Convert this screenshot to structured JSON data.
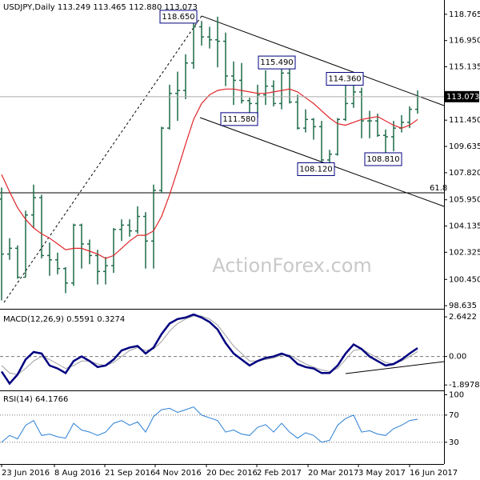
{
  "chart_data": [
    {
      "type": "ohlc",
      "title": "USDJPY,Daily 113.249 113.465 112.880 113.073",
      "watermark": "ActionForex.com",
      "color": "#1f6b4a",
      "x": [
        0,
        1,
        2,
        3,
        4,
        5,
        6,
        7,
        8,
        9,
        10,
        11,
        12,
        13,
        14,
        15,
        16,
        17,
        18,
        19,
        20,
        21,
        22,
        23,
        24,
        25,
        26,
        27,
        28,
        29,
        30,
        31,
        32,
        33,
        34,
        35,
        36,
        37,
        38,
        39,
        40,
        41,
        42,
        43,
        44,
        45,
        46,
        47,
        48,
        49,
        50,
        51,
        52
      ],
      "open": [
        106.0,
        102.2,
        102.6,
        100.6,
        104.9,
        106.1,
        102.1,
        101.8,
        101.2,
        100.2,
        104.2,
        102.9,
        102.1,
        101.0,
        101.4,
        103.9,
        104.2,
        103.8,
        104.8,
        103.1,
        106.6,
        110.9,
        113.3,
        113.5,
        115.4,
        117.9,
        117.2,
        117.0,
        116.9,
        114.5,
        114.2,
        112.8,
        112.6,
        113.2,
        113.8,
        112.6,
        114.7,
        112.7,
        110.9,
        111.5,
        111.0,
        108.7,
        109.1,
        111.5,
        112.6,
        113.4,
        111.4,
        111.4,
        110.4,
        110.3,
        110.9,
        111.3,
        112.2
      ],
      "high": [
        106.8,
        103.3,
        102.8,
        105.2,
        107.0,
        106.3,
        103.0,
        102.3,
        101.3,
        104.3,
        104.3,
        103.2,
        102.5,
        102.0,
        104.0,
        104.6,
        104.6,
        105.5,
        105.1,
        107.0,
        111.0,
        113.9,
        114.8,
        116.0,
        118.65,
        118.3,
        117.9,
        118.6,
        117.5,
        115.5,
        115.4,
        113.0,
        113.9,
        114.9,
        114.2,
        115.5,
        115.1,
        113.2,
        112.2,
        111.6,
        111.4,
        109.4,
        111.6,
        114.0,
        114.36,
        113.7,
        112.1,
        111.9,
        110.8,
        111.4,
        111.8,
        112.4,
        113.5
      ],
      "low": [
        99.0,
        101.8,
        100.5,
        100.6,
        104.0,
        101.9,
        100.7,
        100.8,
        99.5,
        100.0,
        101.2,
        101.5,
        100.1,
        100.1,
        100.9,
        103.1,
        103.4,
        103.6,
        101.2,
        101.2,
        106.4,
        110.8,
        111.4,
        112.9,
        115.0,
        116.6,
        116.4,
        115.1,
        113.8,
        112.5,
        112.6,
        111.6,
        111.6,
        112.5,
        112.4,
        112.2,
        112.6,
        110.8,
        110.6,
        110.1,
        108.6,
        108.12,
        109.0,
        111.4,
        112.3,
        110.2,
        110.2,
        110.3,
        108.81,
        109.3,
        110.6,
        110.9,
        111.9
      ],
      "close": [
        102.2,
        102.6,
        100.6,
        104.9,
        106.1,
        102.1,
        101.8,
        101.2,
        100.2,
        104.2,
        102.9,
        102.1,
        101.0,
        101.4,
        103.9,
        104.2,
        103.8,
        104.8,
        103.1,
        106.6,
        110.9,
        113.3,
        113.5,
        115.4,
        117.9,
        117.2,
        117.0,
        116.9,
        114.5,
        114.2,
        112.8,
        112.6,
        113.2,
        113.8,
        112.6,
        114.7,
        112.7,
        110.9,
        111.5,
        111.0,
        108.7,
        109.1,
        111.5,
        112.6,
        113.4,
        111.4,
        111.4,
        110.4,
        110.3,
        110.9,
        111.3,
        112.2,
        113.073
      ],
      "overlays": [
        {
          "color": "#e0262a",
          "values": [
            107.7,
            106.5,
            105.4,
            104.6,
            104.0,
            103.6,
            103.3,
            102.9,
            102.5,
            102.6,
            102.6,
            102.4,
            102.2,
            101.9,
            102.1,
            102.6,
            103.1,
            103.5,
            103.5,
            103.8,
            104.8,
            106.3,
            108.0,
            109.8,
            111.5,
            112.6,
            113.2,
            113.5,
            113.6,
            113.6,
            113.5,
            113.4,
            113.3,
            113.3,
            113.4,
            113.5,
            113.6,
            113.4,
            113.0,
            112.6,
            112.1,
            111.6,
            111.2,
            111.1,
            111.3,
            111.5,
            111.6,
            111.7,
            111.4,
            111.1,
            110.9,
            111.1,
            111.5
          ]
        }
      ],
      "annotations": [
        {
          "value": 118.65,
          "label": "118.650"
        },
        {
          "value": 115.49,
          "label": "115.490"
        },
        {
          "value": 114.36,
          "label": "114.360"
        },
        {
          "value": 111.58,
          "label": "111.580"
        },
        {
          "value": 108.12,
          "label": "108.120"
        },
        {
          "value": 108.81,
          "label": "108.810"
        }
      ],
      "last_price": {
        "value": 113.073,
        "label": "113.073"
      },
      "fib_level": 61.8,
      "xlim": [
        -0.2,
        55.3
      ],
      "ylim": [
        98.42,
        119.75
      ],
      "yticks": [
        118.765,
        {
          "value": 116.95,
          "label": "116.950"
        },
        115.135,
        {
          "value": 111.45,
          "label": "111.450"
        },
        109.635,
        {
          "value": 107.82,
          "label": "107.820"
        },
        {
          "value": 105.95,
          "label": "105.950"
        },
        104.135,
        102.325,
        {
          "value": 100.45,
          "label": "100.450"
        },
        98.635
      ]
    },
    {
      "type": "line",
      "title": "MACD(12,26,9) 0.5591 0.3274",
      "x": [
        0,
        1,
        2,
        3,
        4,
        5,
        6,
        7,
        8,
        9,
        10,
        11,
        12,
        13,
        14,
        15,
        16,
        17,
        18,
        19,
        20,
        21,
        22,
        23,
        24,
        25,
        26,
        27,
        28,
        29,
        30,
        31,
        32,
        33,
        34,
        35,
        36,
        37,
        38,
        39,
        40,
        41,
        42,
        43,
        44,
        45,
        46,
        47,
        48,
        49,
        50,
        51,
        52
      ],
      "series": [
        {
          "color": "#a0a0a0",
          "width": 1,
          "values": [
            -0.6,
            -1.1,
            -1.2,
            -0.8,
            -0.3,
            0.0,
            -0.2,
            -0.5,
            -0.8,
            -0.6,
            -0.3,
            -0.3,
            -0.5,
            -0.6,
            -0.4,
            0.0,
            0.4,
            0.6,
            0.4,
            0.5,
            1.0,
            1.7,
            2.2,
            2.5,
            2.7,
            2.7,
            2.5,
            2.1,
            1.4,
            0.7,
            0.2,
            -0.3,
            -0.3,
            -0.2,
            -0.1,
            0.1,
            0.1,
            -0.2,
            -0.5,
            -0.7,
            -0.9,
            -1.0,
            -0.8,
            -0.2,
            0.4,
            0.5,
            0.2,
            -0.1,
            -0.4,
            -0.5,
            -0.3,
            0.0,
            0.33
          ]
        },
        {
          "color": "#000080",
          "width": 2.5,
          "values": [
            -1.0,
            -1.8,
            -1.2,
            -0.2,
            0.3,
            0.2,
            -0.6,
            -0.8,
            -1.1,
            -0.3,
            0.0,
            -0.3,
            -0.7,
            -0.6,
            -0.2,
            0.4,
            0.6,
            0.7,
            0.2,
            0.6,
            1.5,
            2.2,
            2.5,
            2.6,
            2.8,
            2.6,
            2.3,
            1.8,
            0.9,
            0.2,
            -0.2,
            -0.6,
            -0.3,
            -0.1,
            0.0,
            0.2,
            0.0,
            -0.5,
            -0.7,
            -0.8,
            -1.1,
            -1.1,
            -0.6,
            0.2,
            0.8,
            0.5,
            0.0,
            -0.3,
            -0.6,
            -0.5,
            -0.2,
            0.2,
            0.56
          ]
        }
      ],
      "levels": [
        0
      ],
      "xlim": [
        -0.2,
        55.3
      ],
      "ylim": [
        -2.26,
        3.02
      ],
      "yticks": [
        2.6422,
        {
          "value": 0,
          "label": "0.00"
        },
        -1.8978
      ]
    },
    {
      "type": "line",
      "title": "RSI(14) 64.1766",
      "x": [
        0,
        1,
        2,
        3,
        4,
        5,
        6,
        7,
        8,
        9,
        10,
        11,
        12,
        13,
        14,
        15,
        16,
        17,
        18,
        19,
        20,
        21,
        22,
        23,
        24,
        25,
        26,
        27,
        28,
        29,
        30,
        31,
        32,
        33,
        34,
        35,
        36,
        37,
        38,
        39,
        40,
        41,
        42,
        43,
        44,
        45,
        46,
        47,
        48,
        49,
        50,
        51,
        52
      ],
      "series": [
        {
          "color": "#2a7fd4",
          "width": 1,
          "values": [
            30,
            40,
            35,
            55,
            62,
            40,
            42,
            38,
            36,
            58,
            48,
            45,
            40,
            45,
            58,
            62,
            55,
            60,
            45,
            68,
            78,
            80,
            74,
            78,
            82,
            70,
            66,
            62,
            45,
            48,
            42,
            40,
            52,
            56,
            45,
            58,
            45,
            36,
            44,
            40,
            30,
            33,
            55,
            65,
            70,
            45,
            47,
            42,
            40,
            50,
            55,
            62,
            64
          ]
        }
      ],
      "levels": [
        70,
        30
      ],
      "xlim": [
        -0.2,
        55.3
      ],
      "ylim": [
        -2,
        104
      ],
      "yticks": [
        100,
        70,
        30
      ],
      "xticks": [
        {
          "value": 0,
          "label": "23 Jun 2016"
        },
        {
          "value": 6.6,
          "label": "8 Aug 2016"
        },
        {
          "value": 12.9,
          "label": "21 Sep 2016"
        },
        {
          "value": 19.2,
          "label": "4 Nov 2016"
        },
        {
          "value": 25.6,
          "label": "20 Dec 2016"
        },
        {
          "value": 31.9,
          "label": "2 Feb 2017"
        },
        {
          "value": 38.3,
          "label": "20 Mar 2017"
        },
        {
          "value": 44.6,
          "label": "3 May 2017"
        },
        {
          "value": 51,
          "label": "16 Jun 2017"
        }
      ]
    }
  ]
}
